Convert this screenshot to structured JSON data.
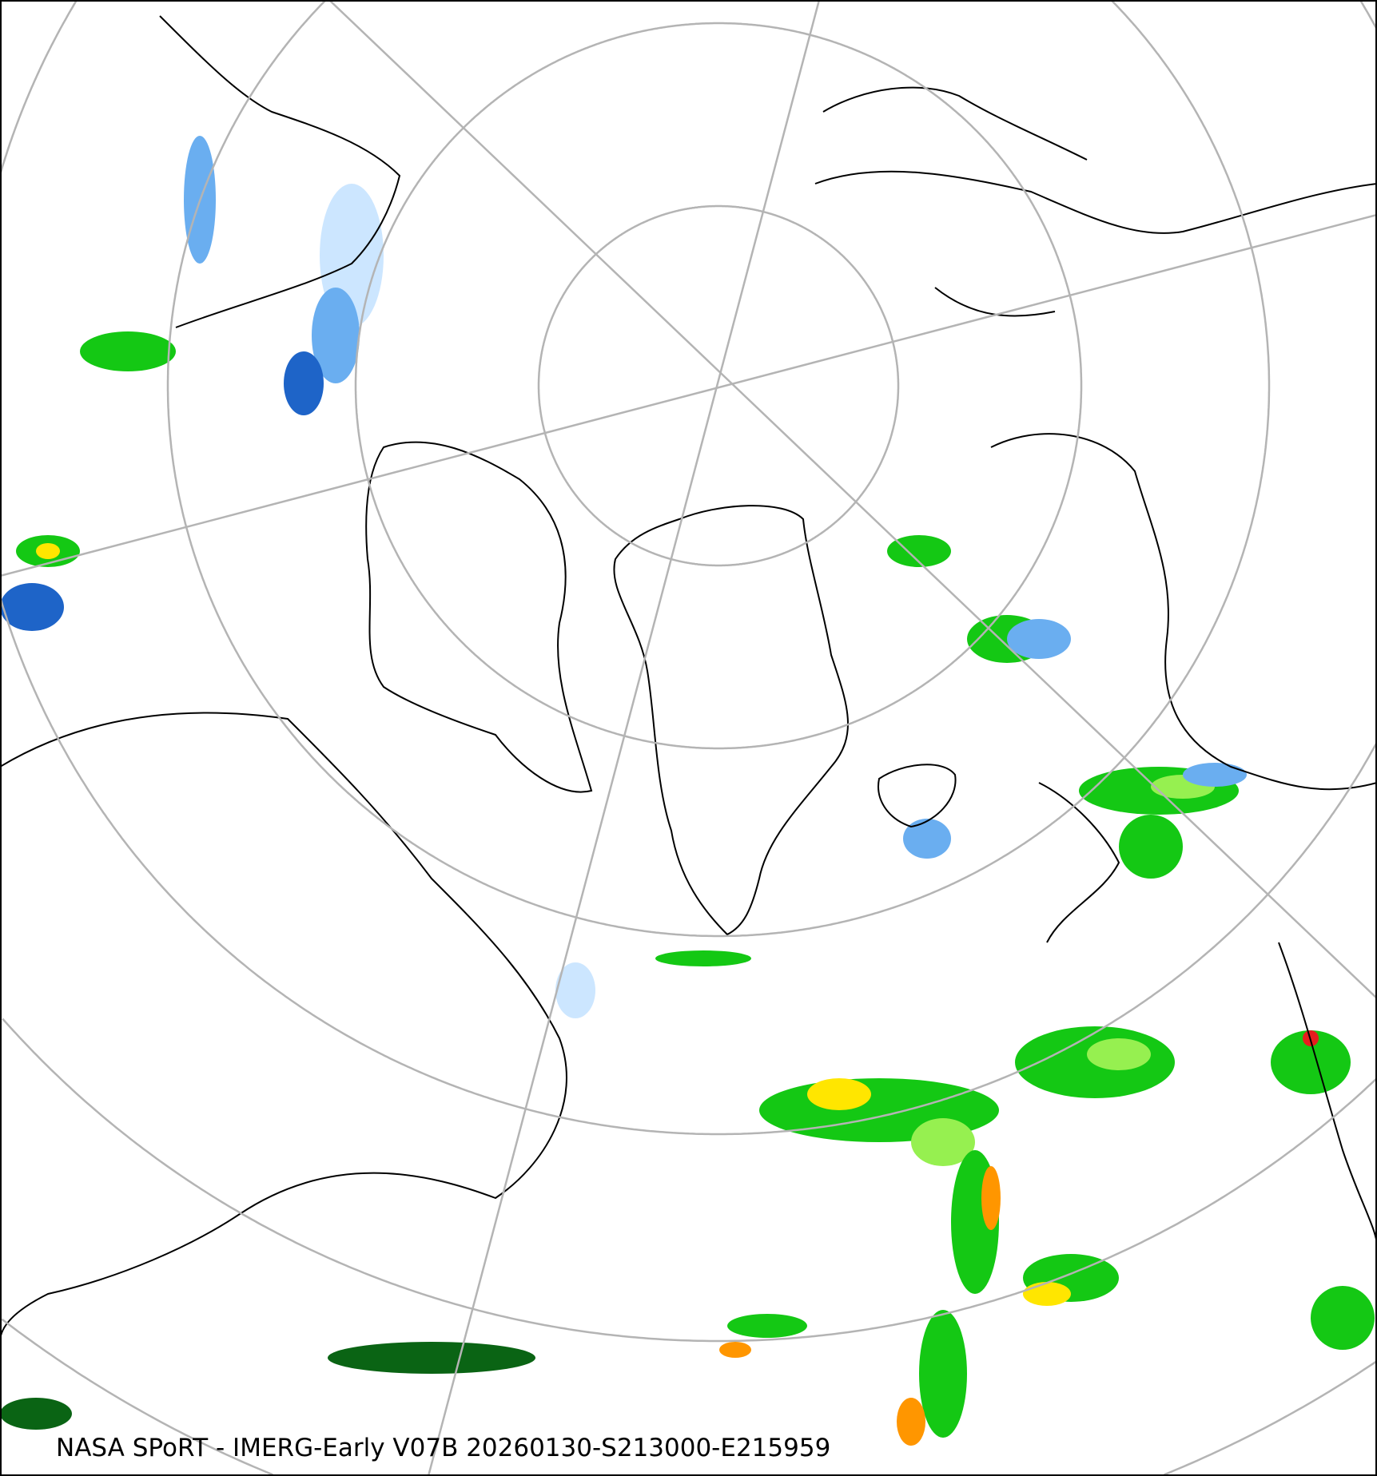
{
  "caption": "NASA SPoRT - IMERG-Early V07B 20260130-S213000-E215959",
  "colors": {
    "graticule": "#b4b4b4",
    "coastline": "#000000",
    "snow_light": "#cce6ff",
    "snow_mid": "#6aaef0",
    "snow_heavy": "#1e64c8",
    "rain_dark": "#0a6414",
    "rain_green": "#14c814",
    "rain_light": "#96f050",
    "rain_yellow": "#ffe600",
    "rain_orange": "#ff9600",
    "rain_red": "#e61e1e",
    "mix_pink": "#ff64c8"
  }
}
